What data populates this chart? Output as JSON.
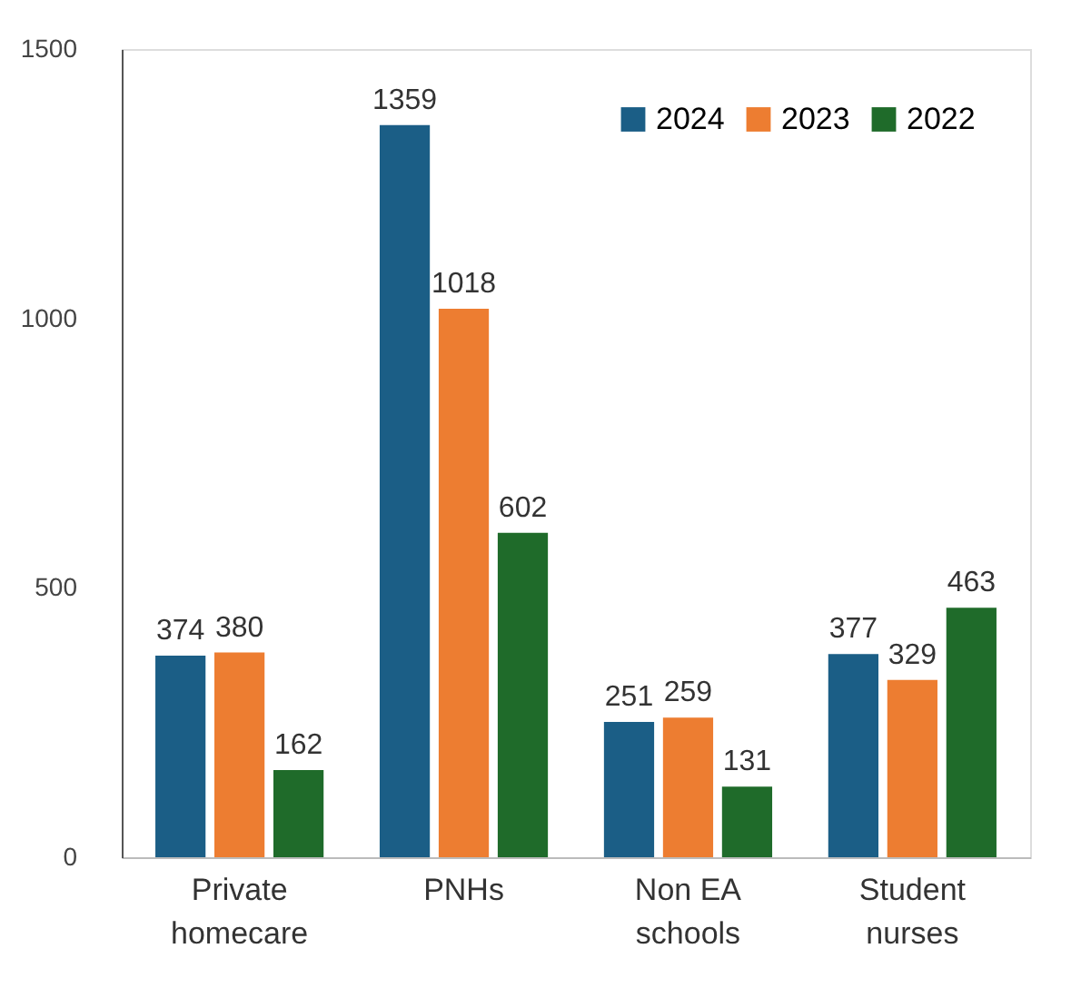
{
  "chart_data": {
    "type": "bar",
    "categories": [
      "Private\nhomecare",
      "PNHs",
      "Non EA\nschools",
      "Student\nnurses"
    ],
    "series": [
      {
        "name": "2024",
        "color": "#1b5e86",
        "values": [
          374,
          1359,
          251,
          377
        ]
      },
      {
        "name": "2023",
        "color": "#ed7d31",
        "values": [
          380,
          1018,
          259,
          329
        ]
      },
      {
        "name": "2022",
        "color": "#1f6b2a",
        "values": [
          162,
          602,
          131,
          463
        ]
      }
    ],
    "ylim": [
      0,
      1500
    ],
    "yticks": [
      0,
      500,
      1000,
      1500
    ],
    "grid": false,
    "legend": "top right",
    "data_labels": true
  }
}
